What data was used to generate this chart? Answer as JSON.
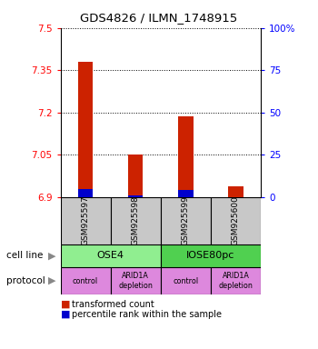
{
  "title": "GDS4826 / ILMN_1748915",
  "samples": [
    "GSM925597",
    "GSM925598",
    "GSM925599",
    "GSM925600"
  ],
  "red_values": [
    7.38,
    7.05,
    7.185,
    6.94
  ],
  "blue_values": [
    6.93,
    6.905,
    6.925,
    6.9
  ],
  "y_min": 6.9,
  "y_max": 7.5,
  "y_ticks": [
    6.9,
    7.05,
    7.2,
    7.35,
    7.5
  ],
  "y_ticks_right": [
    0,
    25,
    50,
    75,
    100
  ],
  "cell_line_labels": [
    "OSE4",
    "IOSE80pc"
  ],
  "cell_line_spans": [
    [
      0,
      1
    ],
    [
      2,
      3
    ]
  ],
  "cell_line_colors": [
    "#90EE90",
    "#50D050"
  ],
  "protocol_labels": [
    "control",
    "ARID1A\ndepletion",
    "control",
    "ARID1A\ndepletion"
  ],
  "protocol_color": "#DD88DD",
  "sample_box_color": "#C8C8C8",
  "bar_width": 0.3,
  "bar_color_red": "#CC2200",
  "bar_color_blue": "#0000CC",
  "legend_red": "transformed count",
  "legend_blue": "percentile rank within the sample"
}
